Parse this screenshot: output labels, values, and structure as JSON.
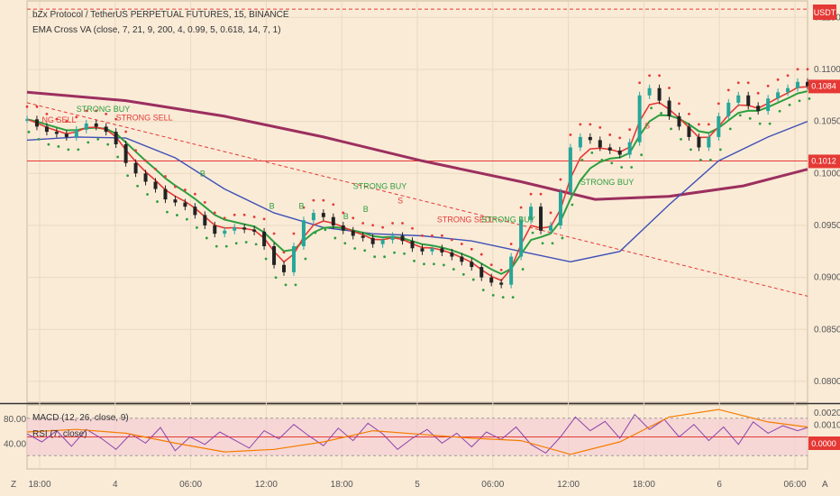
{
  "header": {
    "title": "bZx Protocol / TetherUS PERPETUAL FUTURES, 15, BINANCE",
    "indicator": "EMA Cross VA (close, 7, 21, 9, 200, 4, 0.99, 5, 0.618, 14, 7, 1)",
    "macd_label": "MACD (12, 26, close, 9)",
    "rsi_label": "RSI (7, close)"
  },
  "badges": {
    "currency": "USDT",
    "last_price": "0.1084",
    "level_price": "0.1012",
    "macd_zero": "0.0000"
  },
  "footer": {
    "left_icon": "Z",
    "right_icon": "A"
  },
  "colors": {
    "background": "#faebd7",
    "price_up": "#26a69a",
    "price_down": "#222222",
    "ema_fast": "#e53935",
    "ema_slow": "#2e9e3e",
    "ema_mid": "#3f51b5",
    "ema_200": "#9c2f5e",
    "trend": "#e53935",
    "level": "#e53935",
    "rsi": "#8e44ad",
    "macd": "#f57c00"
  },
  "chart_data": {
    "type": "line",
    "price_axis": {
      "ticks": [
        "0.1150",
        "0.1100",
        "0.1050",
        "0.1000",
        "0.0950",
        "0.0900",
        "0.0850",
        "0.0800"
      ],
      "ylim": [
        0.078,
        0.1165
      ]
    },
    "time_axis": [
      "18:00",
      "4",
      "06:00",
      "12:00",
      "18:00",
      "5",
      "06:00",
      "12:00",
      "18:00",
      "6",
      "06:00"
    ],
    "price_series": {
      "name": "bZx / USDT",
      "x": [
        0,
        4,
        8,
        12,
        16,
        20,
        24,
        28,
        32,
        36,
        40,
        44,
        48,
        52,
        56,
        60,
        64,
        68,
        72,
        76,
        80,
        84,
        88,
        92,
        96,
        100,
        104,
        108,
        112,
        116,
        120,
        124,
        128,
        132,
        136,
        140,
        144,
        148,
        152,
        156,
        160,
        164,
        168,
        172,
        176,
        180,
        184,
        188,
        192,
        196,
        200,
        204,
        208,
        212,
        216,
        220,
        224,
        228,
        232,
        236,
        240,
        244,
        248,
        252,
        256,
        260,
        264,
        268,
        272,
        276,
        280,
        284,
        288,
        292,
        296,
        300,
        304,
        308,
        312,
        316
      ],
      "values": [
        0.1052,
        0.1045,
        0.104,
        0.1038,
        0.1035,
        0.1042,
        0.1048,
        0.1045,
        0.104,
        0.1028,
        0.101,
        0.1,
        0.0992,
        0.0985,
        0.0975,
        0.0972,
        0.0968,
        0.096,
        0.095,
        0.0942,
        0.0945,
        0.0948,
        0.0946,
        0.0944,
        0.093,
        0.0912,
        0.0905,
        0.093,
        0.0955,
        0.0962,
        0.0958,
        0.095,
        0.0945,
        0.094,
        0.0938,
        0.0932,
        0.0936,
        0.094,
        0.0935,
        0.0928,
        0.0925,
        0.0928,
        0.0924,
        0.092,
        0.0915,
        0.091,
        0.09,
        0.0895,
        0.0893,
        0.092,
        0.0955,
        0.0968,
        0.0945,
        0.095,
        0.0982,
        0.1025,
        0.1035,
        0.1032,
        0.1025,
        0.1022,
        0.1018,
        0.103,
        0.1075,
        0.1082,
        0.107,
        0.1055,
        0.1045,
        0.1035,
        0.1025,
        0.1035,
        0.1055,
        0.1068,
        0.1075,
        0.1065,
        0.106,
        0.1072,
        0.1078,
        0.1082,
        0.1088,
        0.1084
      ]
    },
    "ema_slow_200": {
      "x": [
        0,
        40,
        80,
        120,
        160,
        200,
        230,
        260,
        290,
        316
      ],
      "values": [
        0.1078,
        0.107,
        0.1055,
        0.1035,
        0.1012,
        0.0992,
        0.0975,
        0.0978,
        0.0988,
        0.1004
      ]
    },
    "ema_mid": {
      "x": [
        0,
        20,
        40,
        60,
        80,
        100,
        120,
        140,
        160,
        180,
        200,
        220,
        240,
        260,
        280,
        300,
        316
      ],
      "values": [
        0.1032,
        0.1035,
        0.1034,
        0.1015,
        0.0985,
        0.0962,
        0.0948,
        0.0942,
        0.094,
        0.0935,
        0.0925,
        0.0915,
        0.0925,
        0.097,
        0.1012,
        0.1035,
        0.105
      ]
    },
    "trendline": {
      "x": [
        0,
        316
      ],
      "values": [
        0.1068,
        0.0882
      ]
    },
    "level_line": 0.1012,
    "top_level_line": 0.1158,
    "signals": [
      {
        "label": "STRONG BUY",
        "x": 20,
        "y": 0.1059,
        "side": "buy"
      },
      {
        "label": "NG SELL",
        "x": 6,
        "y": 0.1049,
        "side": "sell"
      },
      {
        "label": "STRONG SELL",
        "x": 36,
        "y": 0.1051,
        "side": "sell"
      },
      {
        "label": "B",
        "x": 70,
        "y": 0.0997,
        "side": "buy"
      },
      {
        "label": "B",
        "x": 98,
        "y": 0.0966,
        "side": "buy"
      },
      {
        "label": "B",
        "x": 110,
        "y": 0.0966,
        "side": "buy"
      },
      {
        "label": "B",
        "x": 128,
        "y": 0.0956,
        "side": "buy"
      },
      {
        "label": "STRONG BUY",
        "x": 132,
        "y": 0.0985,
        "side": "buy"
      },
      {
        "label": "B",
        "x": 136,
        "y": 0.0963,
        "side": "buy"
      },
      {
        "label": "S",
        "x": 150,
        "y": 0.0971,
        "side": "sell"
      },
      {
        "label": "STRONG SELL",
        "x": 166,
        "y": 0.0953,
        "side": "sell"
      },
      {
        "label": "STRONG BUY",
        "x": 184,
        "y": 0.0953,
        "side": "buy"
      },
      {
        "label": "STRONG BUY",
        "x": 224,
        "y": 0.0989,
        "side": "buy"
      },
      {
        "label": "S",
        "x": 250,
        "y": 0.1043,
        "side": "sell"
      }
    ],
    "oscillator": {
      "y_ticks_left": [
        "80.00",
        "40.00"
      ],
      "y_ticks_right": [
        "0.0020",
        "0.0010"
      ],
      "rsi_range": [
        0,
        100
      ],
      "rsi_x": [
        0,
        6,
        12,
        18,
        24,
        30,
        36,
        42,
        48,
        54,
        60,
        66,
        72,
        78,
        84,
        90,
        96,
        102,
        108,
        114,
        120,
        126,
        132,
        138,
        144,
        150,
        156,
        162,
        168,
        174,
        180,
        186,
        192,
        198,
        204,
        210,
        216,
        222,
        228,
        234,
        240,
        246,
        252,
        258,
        264,
        270,
        276,
        282,
        288,
        294,
        300,
        306,
        312,
        316
      ],
      "rsi": [
        55,
        42,
        60,
        35,
        62,
        48,
        30,
        55,
        40,
        65,
        28,
        50,
        38,
        58,
        45,
        32,
        60,
        47,
        70,
        52,
        36,
        64,
        44,
        72,
        55,
        30,
        48,
        62,
        40,
        56,
        34,
        58,
        46,
        66,
        38,
        24,
        50,
        82,
        60,
        75,
        48,
        86,
        62,
        78,
        50,
        70,
        44,
        66,
        38,
        74,
        56,
        68,
        60,
        65
      ],
      "macd_x": [
        0,
        20,
        40,
        60,
        80,
        100,
        120,
        140,
        160,
        180,
        200,
        220,
        240,
        260,
        280,
        300,
        316
      ],
      "macd": [
        0.0004,
        0.0006,
        0.0003,
        -0.0005,
        -0.0012,
        -0.001,
        -0.0004,
        0.0005,
        0.0002,
        -0.0001,
        -0.0003,
        -0.0014,
        -0.0004,
        0.0016,
        0.0022,
        0.0012,
        0.0008
      ]
    }
  }
}
